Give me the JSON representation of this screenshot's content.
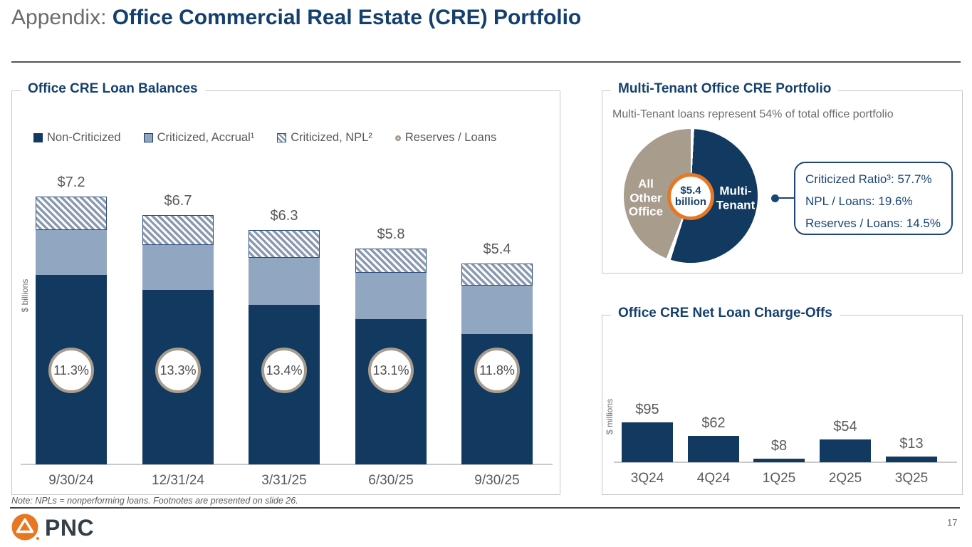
{
  "page": {
    "title_prefix": "Appendix: ",
    "title_main": "Office Commercial Real Estate (CRE) Portfolio",
    "note": "Note: NPLs = nonperforming loans. Footnotes are presented on slide 26.",
    "page_number": "17",
    "logo_text": "PNC"
  },
  "colors": {
    "navy": "#12395f",
    "heading_navy": "#15406e",
    "callout_navy": "#1b4576",
    "light_blue": "#91a6c1",
    "hatch_stripe": "#8b9ab0",
    "tan": "#a89c8d",
    "orange": "#e87722",
    "gray_text": "#58595b",
    "panel_border": "#c7c7c7"
  },
  "loan_balances": {
    "title": "Office CRE Loan Balances",
    "y_axis_label": "$ billions",
    "legend": [
      {
        "label": "Non-Criticized"
      },
      {
        "label": "Criticized, Accrual¹"
      },
      {
        "label": "Criticized, NPL²"
      },
      {
        "label": "Reserves / Loans"
      }
    ]
  },
  "multi_tenant": {
    "title": "Multi-Tenant Office CRE Portfolio",
    "subtitle": "Multi-Tenant loans represent 54% of total office portfolio",
    "slice_label_other": "All\nOther\nOffice",
    "slice_label_multi": "Multi-\nTenant",
    "center_line1": "$5.4",
    "center_line2": "billion",
    "callout_lines": [
      "Criticized Ratio³: 57.7%",
      "NPL / Loans: 19.6%",
      "Reserves / Loans: 14.5%"
    ]
  },
  "charge_offs": {
    "title": "Office CRE Net Loan Charge-Offs",
    "y_axis_label": "$ millions"
  },
  "chart_data": [
    {
      "type": "bar",
      "subtype": "stacked",
      "title": "Office CRE Loan Balances",
      "ylabel": "$ billions",
      "categories": [
        "9/30/24",
        "12/31/24",
        "3/31/25",
        "6/30/25",
        "9/30/25"
      ],
      "totals": [
        7.2,
        6.7,
        6.3,
        5.8,
        5.4
      ],
      "totals_labels": [
        "$7.2",
        "$6.7",
        "$6.3",
        "$5.8",
        "$5.4"
      ],
      "series": [
        {
          "name": "Non-Criticized",
          "values": [
            5.1,
            4.7,
            4.3,
            3.9,
            3.5
          ]
        },
        {
          "name": "Criticized, Accrual",
          "values": [
            1.2,
            1.2,
            1.25,
            1.25,
            1.3
          ]
        },
        {
          "name": "Criticized, NPL",
          "values": [
            0.9,
            0.8,
            0.75,
            0.65,
            0.6
          ]
        }
      ],
      "series_note": "segment values estimated from bar proportions; totals are labeled on chart",
      "reserves_to_loans_pct": [
        "11.3%",
        "13.3%",
        "13.4%",
        "13.1%",
        "11.8%"
      ],
      "legend_position": "top",
      "grid": false
    },
    {
      "type": "pie",
      "title": "Multi-Tenant Office CRE Portfolio",
      "subtitle": "Multi-Tenant loans represent 54% of total office portfolio",
      "slices": [
        {
          "name": "Multi-Tenant",
          "pct": 54
        },
        {
          "name": "All Other Office",
          "pct": 46
        }
      ],
      "center_label": "$5.4 billion",
      "callout": {
        "criticized_ratio": "57.7%",
        "npl_to_loans": "19.6%",
        "reserves_to_loans": "14.5%"
      }
    },
    {
      "type": "bar",
      "title": "Office CRE Net Loan Charge-Offs",
      "ylabel": "$ millions",
      "categories": [
        "3Q24",
        "4Q24",
        "1Q25",
        "2Q25",
        "3Q25"
      ],
      "values": [
        95,
        62,
        8,
        54,
        13
      ],
      "labels": [
        "$95",
        "$62",
        "$8",
        "$54",
        "$13"
      ],
      "grid": false
    }
  ]
}
